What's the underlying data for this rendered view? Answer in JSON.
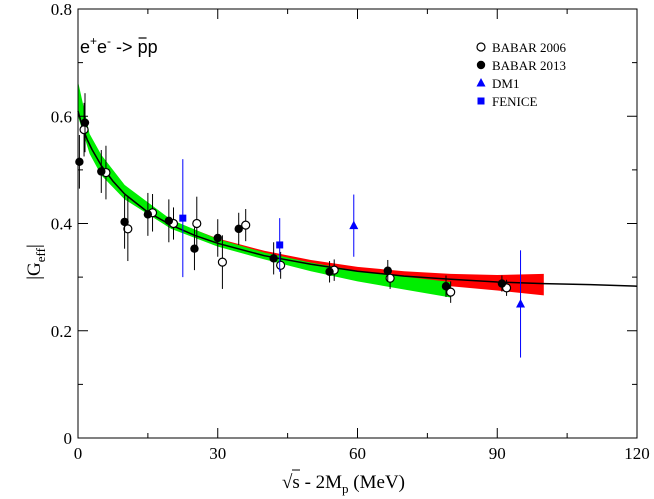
{
  "chart_data": {
    "type": "scatter",
    "title": "",
    "xlabel": "√s - 2M",
    "xlabel_sub": "p",
    "xlabel_unit": " (MeV)",
    "ylabel": "|G",
    "ylabel_sub": "eff",
    "ylabel_tail": "|",
    "xlim": [
      0,
      120
    ],
    "ylim": [
      0,
      0.8
    ],
    "xticks": [
      0,
      30,
      60,
      90,
      120
    ],
    "xtick_labels": [
      "0",
      "30",
      "60",
      "90",
      "120"
    ],
    "yticks": [
      0,
      0.2,
      0.4,
      0.6,
      0.8
    ],
    "ytick_labels": [
      "0",
      "0.2",
      "0.4",
      "0.6",
      "0.8"
    ],
    "annotation": {
      "text_base1": "e",
      "text_sup1": "+",
      "text_base2": "e",
      "text_sup2": "-",
      "text_arrow": " -> ",
      "text_product": "pp",
      "x": 3,
      "y": 0.72
    },
    "legend": {
      "placement": "top-right",
      "entries": [
        {
          "label": "BABAR 2006",
          "marker": "open-circle",
          "color": "#000000"
        },
        {
          "label": "BABAR 2013",
          "marker": "filled-circle",
          "color": "#000000"
        },
        {
          "label": "DM1",
          "marker": "triangle",
          "color": "#0000ff"
        },
        {
          "label": "FENICE",
          "marker": "square",
          "color": "#0000ff"
        }
      ]
    },
    "series": [
      {
        "name": "BABAR 2006",
        "marker": "open-circle",
        "color": "#000000",
        "points": [
          {
            "x": 1.3,
            "y": 0.575,
            "err": 0.05
          },
          {
            "x": 6.0,
            "y": 0.495,
            "err": 0.05
          },
          {
            "x": 10.7,
            "y": 0.39,
            "err": 0.06
          },
          {
            "x": 16.0,
            "y": 0.42,
            "err": 0.035
          },
          {
            "x": 20.5,
            "y": 0.4,
            "err": 0.03
          },
          {
            "x": 25.5,
            "y": 0.4,
            "err": 0.05
          },
          {
            "x": 31.0,
            "y": 0.328,
            "err": 0.05
          },
          {
            "x": 36.0,
            "y": 0.397,
            "err": 0.03
          },
          {
            "x": 43.5,
            "y": 0.322,
            "err": 0.025
          },
          {
            "x": 55.0,
            "y": 0.313,
            "err": 0.02
          },
          {
            "x": 67.0,
            "y": 0.298,
            "err": 0.02
          },
          {
            "x": 80.0,
            "y": 0.272,
            "err": 0.02
          },
          {
            "x": 92.0,
            "y": 0.28,
            "err": 0.015
          }
        ]
      },
      {
        "name": "BABAR 2013",
        "marker": "filled-circle",
        "color": "#000000",
        "points": [
          {
            "x": 0.3,
            "y": 0.515,
            "err": 0.05
          },
          {
            "x": 1.5,
            "y": 0.588,
            "err": 0.055
          },
          {
            "x": 5.0,
            "y": 0.497,
            "err": 0.04
          },
          {
            "x": 10.0,
            "y": 0.403,
            "err": 0.05
          },
          {
            "x": 15.0,
            "y": 0.417,
            "err": 0.04
          },
          {
            "x": 19.5,
            "y": 0.405,
            "err": 0.04
          },
          {
            "x": 25.0,
            "y": 0.353,
            "err": 0.04
          },
          {
            "x": 30.0,
            "y": 0.373,
            "err": 0.035
          },
          {
            "x": 34.5,
            "y": 0.39,
            "err": 0.03
          },
          {
            "x": 42.0,
            "y": 0.335,
            "err": 0.03
          },
          {
            "x": 54.0,
            "y": 0.31,
            "err": 0.02
          },
          {
            "x": 66.5,
            "y": 0.312,
            "err": 0.02
          },
          {
            "x": 79.0,
            "y": 0.283,
            "err": 0.02
          },
          {
            "x": 91.0,
            "y": 0.288,
            "err": 0.015
          }
        ]
      },
      {
        "name": "DM1",
        "marker": "triangle",
        "color": "#0000ff",
        "points": [
          {
            "x": 59.2,
            "y": 0.396,
            "err": 0.058
          },
          {
            "x": 95.0,
            "y": 0.25,
            "err": 0.1
          }
        ]
      },
      {
        "name": "FENICE",
        "marker": "square",
        "color": "#0000ff",
        "points": [
          {
            "x": 22.5,
            "y": 0.41,
            "err": 0.11
          },
          {
            "x": 43.3,
            "y": 0.36,
            "err": 0.05
          }
        ]
      }
    ],
    "fit_curve": {
      "name": "fit",
      "color": "#000000",
      "x": [
        0,
        1,
        2,
        3,
        5,
        7.5,
        10,
        15,
        20,
        25,
        30,
        40,
        50,
        60,
        70,
        80,
        90,
        100,
        110,
        120
      ],
      "y": [
        0.61,
        0.578,
        0.556,
        0.538,
        0.508,
        0.479,
        0.455,
        0.421,
        0.397,
        0.378,
        0.363,
        0.34,
        0.324,
        0.311,
        0.302,
        0.296,
        0.291,
        0.288,
        0.286,
        0.283
      ]
    },
    "bands": [
      {
        "name": "red band",
        "color": "#ff0000",
        "x": [
          0,
          2.5,
          5,
          10,
          20,
          30,
          40,
          50,
          60,
          70,
          80,
          90,
          100
        ],
        "upper": [
          0.638,
          0.555,
          0.518,
          0.467,
          0.405,
          0.372,
          0.349,
          0.332,
          0.319,
          0.311,
          0.306,
          0.304,
          0.306
        ],
        "lower": [
          0.605,
          0.535,
          0.497,
          0.449,
          0.394,
          0.362,
          0.337,
          0.32,
          0.306,
          0.294,
          0.283,
          0.275,
          0.266
        ]
      },
      {
        "name": "green band",
        "color": "#00ee00",
        "x": [
          0,
          2.5,
          5,
          10,
          20,
          30,
          40,
          50,
          60,
          70,
          80
        ],
        "upper": [
          0.665,
          0.567,
          0.528,
          0.472,
          0.407,
          0.371,
          0.346,
          0.327,
          0.312,
          0.301,
          0.291
        ],
        "lower": [
          0.6,
          0.53,
          0.49,
          0.445,
          0.39,
          0.357,
          0.333,
          0.311,
          0.292,
          0.277,
          0.262
        ]
      }
    ]
  }
}
